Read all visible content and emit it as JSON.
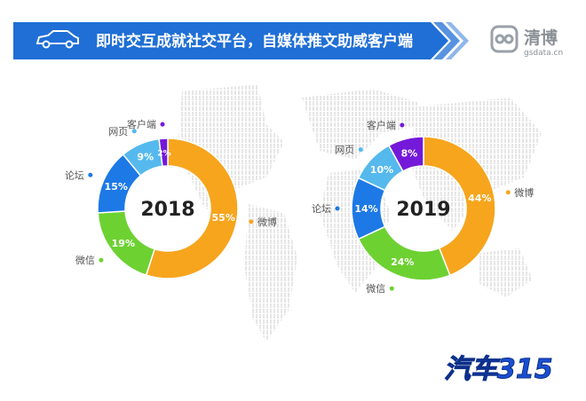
{
  "header": {
    "title": "即时交互成就社交平台，自媒体推文助威客户端",
    "logo_name": "清博",
    "logo_url": "gsdata.cn",
    "icon": "car-icon",
    "banner_color": "#1f6fd6"
  },
  "footer": {
    "brand": "汽车315",
    "brand_color": "#1a4fd0"
  },
  "chart_data": [
    {
      "type": "donut",
      "center_label": "2018",
      "slices": [
        {
          "label": "微博",
          "value": 55,
          "display": "55%",
          "color": "#f6a51d"
        },
        {
          "label": "微信",
          "value": 19,
          "display": "19%",
          "color": "#6dd132"
        },
        {
          "label": "论坛",
          "value": 15,
          "display": "15%",
          "color": "#1d79e6"
        },
        {
          "label": "网页",
          "value": 9,
          "display": "9%",
          "color": "#55b9ee"
        },
        {
          "label": "客户端",
          "value": 2,
          "display": "2%",
          "color": "#7418d9"
        }
      ]
    },
    {
      "type": "donut",
      "center_label": "2019",
      "slices": [
        {
          "label": "微博",
          "value": 44,
          "display": "44%",
          "color": "#f6a51d"
        },
        {
          "label": "微信",
          "value": 24,
          "display": "24%",
          "color": "#6dd132"
        },
        {
          "label": "论坛",
          "value": 14,
          "display": "14%",
          "color": "#1d79e6"
        },
        {
          "label": "网页",
          "value": 10,
          "display": "10%",
          "color": "#55b9ee"
        },
        {
          "label": "客户端",
          "value": 8,
          "display": "8%",
          "color": "#7418d9"
        }
      ]
    }
  ]
}
